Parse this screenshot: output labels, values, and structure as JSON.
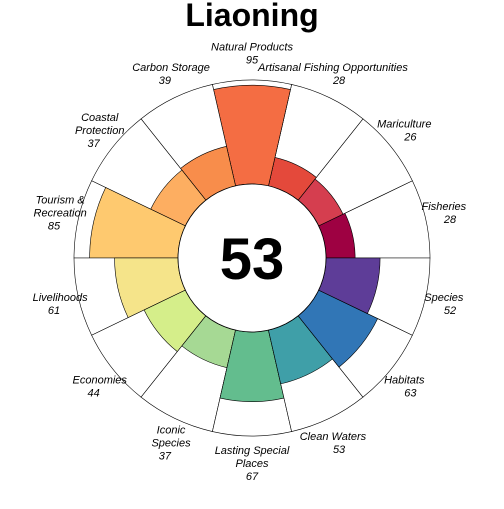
{
  "chart_data": {
    "type": "flower",
    "title": "Liaoning",
    "overall_score": "53",
    "range": [
      0,
      100
    ],
    "petals": [
      {
        "label": "Fisheries",
        "label_lines": [
          "Fisheries"
        ],
        "value": 28,
        "color": "#9e0142"
      },
      {
        "label": "Mariculture",
        "label_lines": [
          "Mariculture"
        ],
        "value": 26,
        "color": "#d53e4f"
      },
      {
        "label": "Artisanal Fishing Opportunities",
        "label_lines": [
          "Artisanal Fishing Opportunities"
        ],
        "value": 28,
        "color": "#e4493b"
      },
      {
        "label": "Natural Products",
        "label_lines": [
          "Natural Products"
        ],
        "value": 95,
        "color": "#f46d43"
      },
      {
        "label": "Carbon Storage",
        "label_lines": [
          "Carbon Storage"
        ],
        "value": 39,
        "color": "#f88d4b"
      },
      {
        "label": "Coastal Protection",
        "label_lines": [
          "Coastal",
          "Protection"
        ],
        "value": 37,
        "color": "#fdae61"
      },
      {
        "label": "Tourism & Recreation",
        "label_lines": [
          "Tourism &",
          "Recreation"
        ],
        "value": 85,
        "color": "#fec96f"
      },
      {
        "label": "Livelihoods",
        "label_lines": [
          "Livelihoods"
        ],
        "value": 61,
        "color": "#f5e48a"
      },
      {
        "label": "Economies",
        "label_lines": [
          "Economies"
        ],
        "value": 44,
        "color": "#d5ee8a"
      },
      {
        "label": "Iconic Species",
        "label_lines": [
          "Iconic",
          "Species"
        ],
        "value": 37,
        "color": "#a6d994"
      },
      {
        "label": "Lasting Special Places",
        "label_lines": [
          "Lasting Special",
          "Places"
        ],
        "value": 67,
        "color": "#63bd8e"
      },
      {
        "label": "Clean Waters",
        "label_lines": [
          "Clean Waters"
        ],
        "value": 53,
        "color": "#3f9fa8"
      },
      {
        "label": "Habitats",
        "label_lines": [
          "Habitats"
        ],
        "value": 63,
        "color": "#3176b6"
      },
      {
        "label": "Species",
        "label_lines": [
          "Species"
        ],
        "value": 52,
        "color": "#5e3d98"
      }
    ]
  }
}
